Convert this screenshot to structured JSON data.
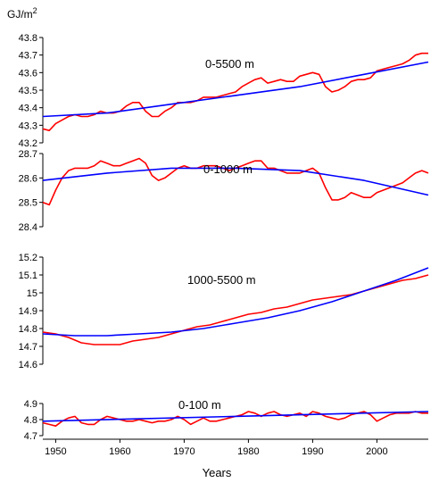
{
  "y_unit": {
    "base": "GJ/m",
    "exponent": "2"
  },
  "x_axis": {
    "label": "Years",
    "ticks": [
      1950,
      1960,
      1970,
      1980,
      1990,
      2000
    ],
    "range": [
      1948,
      2008
    ]
  },
  "colors": {
    "observed": "#ff0000",
    "trend": "#0000ff",
    "axis": "#000000"
  },
  "chart_data": [
    {
      "type": "line",
      "title": "0-5500 m",
      "ylim": [
        43.2,
        43.8
      ],
      "yticks": [
        "43.2",
        "43.3",
        "43.4",
        "43.5",
        "43.6",
        "43.7",
        "43.8"
      ],
      "series": [
        {
          "role": "observed",
          "color": "#ff0000",
          "x": [
            1948,
            1949,
            1950,
            1951,
            1952,
            1953,
            1954,
            1955,
            1956,
            1957,
            1958,
            1959,
            1960,
            1961,
            1962,
            1963,
            1964,
            1965,
            1966,
            1967,
            1968,
            1969,
            1970,
            1971,
            1972,
            1973,
            1974,
            1975,
            1976,
            1977,
            1978,
            1979,
            1980,
            1981,
            1982,
            1983,
            1984,
            1985,
            1986,
            1987,
            1988,
            1989,
            1990,
            1991,
            1992,
            1993,
            1994,
            1995,
            1996,
            1997,
            1998,
            1999,
            2000,
            2001,
            2002,
            2003,
            2004,
            2005,
            2006,
            2007,
            2008
          ],
          "y": [
            43.28,
            43.27,
            43.31,
            43.33,
            43.35,
            43.36,
            43.35,
            43.35,
            43.36,
            43.38,
            43.37,
            43.37,
            43.38,
            43.41,
            43.43,
            43.43,
            43.38,
            43.35,
            43.35,
            43.38,
            43.4,
            43.43,
            43.43,
            43.43,
            43.44,
            43.46,
            43.46,
            43.46,
            43.47,
            43.48,
            43.49,
            43.52,
            43.54,
            43.56,
            43.57,
            43.54,
            43.55,
            43.56,
            43.55,
            43.55,
            43.58,
            43.59,
            43.6,
            43.59,
            43.52,
            43.49,
            43.5,
            43.52,
            43.55,
            43.56,
            43.56,
            43.57,
            43.61,
            43.62,
            43.63,
            43.64,
            43.65,
            43.67,
            43.7,
            43.71,
            43.71
          ]
        },
        {
          "role": "trend",
          "color": "#0000ff",
          "x": [
            1948,
            1958,
            1968,
            1978,
            1988,
            1998,
            2008
          ],
          "y": [
            43.35,
            43.37,
            43.42,
            43.47,
            43.52,
            43.59,
            43.66
          ]
        }
      ]
    },
    {
      "type": "line",
      "title": "0-1000 m",
      "ylim": [
        28.4,
        28.7
      ],
      "yticks": [
        "28.4",
        "28.5",
        "28.6",
        "28.7"
      ],
      "series": [
        {
          "role": "observed",
          "color": "#ff0000",
          "x": [
            1948,
            1949,
            1950,
            1951,
            1952,
            1953,
            1954,
            1955,
            1956,
            1957,
            1958,
            1959,
            1960,
            1961,
            1962,
            1963,
            1964,
            1965,
            1966,
            1967,
            1968,
            1969,
            1970,
            1971,
            1972,
            1973,
            1974,
            1975,
            1976,
            1977,
            1978,
            1979,
            1980,
            1981,
            1982,
            1983,
            1984,
            1985,
            1986,
            1987,
            1988,
            1989,
            1990,
            1991,
            1992,
            1993,
            1994,
            1995,
            1996,
            1997,
            1998,
            1999,
            2000,
            2001,
            2002,
            2003,
            2004,
            2005,
            2006,
            2007,
            2008
          ],
          "y": [
            28.5,
            28.49,
            28.55,
            28.6,
            28.63,
            28.64,
            28.64,
            28.64,
            28.65,
            28.67,
            28.66,
            28.65,
            28.65,
            28.66,
            28.67,
            28.68,
            28.66,
            28.61,
            28.59,
            28.6,
            28.62,
            28.64,
            28.65,
            28.64,
            28.64,
            28.65,
            28.65,
            28.65,
            28.64,
            28.63,
            28.64,
            28.65,
            28.66,
            28.67,
            28.67,
            28.64,
            28.64,
            28.63,
            28.62,
            28.62,
            28.62,
            28.63,
            28.64,
            28.62,
            28.56,
            28.51,
            28.51,
            28.52,
            28.54,
            28.53,
            28.52,
            28.52,
            28.54,
            28.55,
            28.56,
            28.57,
            28.58,
            28.6,
            28.62,
            28.63,
            28.62
          ]
        },
        {
          "role": "trend",
          "color": "#0000ff",
          "x": [
            1948,
            1958,
            1968,
            1978,
            1988,
            1998,
            2008
          ],
          "y": [
            28.59,
            28.62,
            28.64,
            28.64,
            28.63,
            28.59,
            28.53
          ]
        }
      ]
    },
    {
      "type": "line",
      "title": "1000-5500 m",
      "ylim": [
        14.6,
        15.2
      ],
      "yticks": [
        "14.6",
        "14.7",
        "14.8",
        "14.9",
        "15",
        "15.1",
        "15.2"
      ],
      "series": [
        {
          "role": "observed",
          "color": "#ff0000",
          "x": [
            1948,
            1950,
            1952,
            1954,
            1956,
            1958,
            1960,
            1962,
            1964,
            1966,
            1968,
            1970,
            1972,
            1974,
            1976,
            1978,
            1980,
            1982,
            1984,
            1986,
            1988,
            1990,
            1992,
            1994,
            1996,
            1998,
            2000,
            2002,
            2004,
            2006,
            2008
          ],
          "y": [
            14.78,
            14.77,
            14.75,
            14.72,
            14.71,
            14.71,
            14.71,
            14.73,
            14.74,
            14.75,
            14.77,
            14.79,
            14.81,
            14.82,
            14.84,
            14.86,
            14.88,
            14.89,
            14.91,
            14.92,
            14.94,
            14.96,
            14.97,
            14.98,
            14.99,
            15.01,
            15.03,
            15.05,
            15.07,
            15.08,
            15.1
          ]
        },
        {
          "role": "trend",
          "color": "#0000ff",
          "x": [
            1948,
            1953,
            1958,
            1963,
            1968,
            1973,
            1978,
            1983,
            1988,
            1993,
            1998,
            2003,
            2008
          ],
          "y": [
            14.77,
            14.76,
            14.76,
            14.77,
            14.78,
            14.8,
            14.83,
            14.86,
            14.9,
            14.95,
            15.01,
            15.07,
            15.14
          ]
        }
      ]
    },
    {
      "type": "line",
      "title": "0-100 m",
      "ylim": [
        4.7,
        4.9
      ],
      "yticks": [
        "4.7",
        "4.8",
        "4.9"
      ],
      "series": [
        {
          "role": "observed",
          "color": "#ff0000",
          "x": [
            1948,
            1949,
            1950,
            1951,
            1952,
            1953,
            1954,
            1955,
            1956,
            1957,
            1958,
            1959,
            1960,
            1961,
            1962,
            1963,
            1964,
            1965,
            1966,
            1967,
            1968,
            1969,
            1970,
            1971,
            1972,
            1973,
            1974,
            1975,
            1976,
            1977,
            1978,
            1979,
            1980,
            1981,
            1982,
            1983,
            1984,
            1985,
            1986,
            1987,
            1988,
            1989,
            1990,
            1991,
            1992,
            1993,
            1994,
            1995,
            1996,
            1997,
            1998,
            1999,
            2000,
            2001,
            2002,
            2003,
            2004,
            2005,
            2006,
            2007,
            2008
          ],
          "y": [
            4.78,
            4.77,
            4.76,
            4.79,
            4.81,
            4.82,
            4.78,
            4.77,
            4.77,
            4.8,
            4.82,
            4.81,
            4.8,
            4.79,
            4.79,
            4.8,
            4.79,
            4.78,
            4.79,
            4.79,
            4.8,
            4.82,
            4.8,
            4.77,
            4.79,
            4.81,
            4.79,
            4.79,
            4.8,
            4.81,
            4.82,
            4.83,
            4.85,
            4.84,
            4.82,
            4.84,
            4.85,
            4.83,
            4.82,
            4.83,
            4.84,
            4.82,
            4.85,
            4.84,
            4.82,
            4.81,
            4.8,
            4.81,
            4.83,
            4.84,
            4.85,
            4.83,
            4.79,
            4.81,
            4.83,
            4.84,
            4.84,
            4.84,
            4.85,
            4.84,
            4.84
          ]
        },
        {
          "role": "trend",
          "color": "#0000ff",
          "x": [
            1948,
            2008
          ],
          "y": [
            4.79,
            4.85
          ]
        }
      ]
    }
  ]
}
